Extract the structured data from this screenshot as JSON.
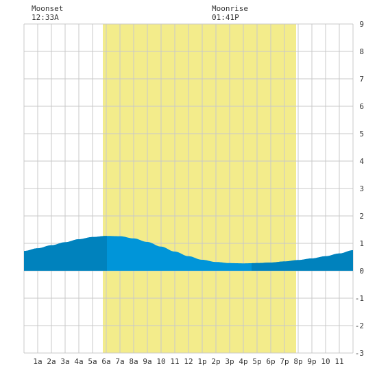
{
  "chart_data": {
    "type": "area",
    "title": "",
    "xlabel": "",
    "ylabel": "",
    "x_range": [
      0,
      24
    ],
    "ylim": [
      -3,
      9
    ],
    "y_ticks": [
      -3,
      -2,
      -1,
      0,
      1,
      2,
      3,
      4,
      5,
      6,
      7,
      8,
      9
    ],
    "x_tick_labels": [
      {
        "x": 1,
        "label": "1a"
      },
      {
        "x": 2,
        "label": "2a"
      },
      {
        "x": 3,
        "label": "3a"
      },
      {
        "x": 4,
        "label": "4a"
      },
      {
        "x": 5,
        "label": "5a"
      },
      {
        "x": 6,
        "label": "6a"
      },
      {
        "x": 7,
        "label": "7a"
      },
      {
        "x": 8,
        "label": "8a"
      },
      {
        "x": 9,
        "label": "9a"
      },
      {
        "x": 10,
        "label": "10"
      },
      {
        "x": 11,
        "label": "11"
      },
      {
        "x": 12,
        "label": "12"
      },
      {
        "x": 13,
        "label": "1p"
      },
      {
        "x": 14,
        "label": "2p"
      },
      {
        "x": 15,
        "label": "3p"
      },
      {
        "x": 16,
        "label": "4p"
      },
      {
        "x": 17,
        "label": "5p"
      },
      {
        "x": 18,
        "label": "6p"
      },
      {
        "x": 19,
        "label": "7p"
      },
      {
        "x": 20,
        "label": "8p"
      },
      {
        "x": 21,
        "label": "9p"
      },
      {
        "x": 22,
        "label": "10"
      },
      {
        "x": 23,
        "label": "11"
      }
    ],
    "grid": true,
    "daylight": {
      "start": 5.75,
      "end": 19.85
    },
    "series": [
      {
        "x": [
          0,
          1,
          2,
          3,
          4,
          5,
          6,
          7,
          8,
          9,
          10,
          11,
          12,
          13,
          14,
          15,
          16,
          17,
          18,
          19,
          20,
          21,
          22,
          23,
          24
        ],
        "values": [
          0.72,
          0.82,
          0.93,
          1.04,
          1.15,
          1.23,
          1.27,
          1.26,
          1.18,
          1.05,
          0.88,
          0.7,
          0.53,
          0.4,
          0.32,
          0.28,
          0.27,
          0.28,
          0.3,
          0.34,
          0.39,
          0.45,
          0.53,
          0.63,
          0.75
        ]
      }
    ],
    "dark_segments": [
      [
        0,
        6.05
      ],
      [
        16.6,
        24
      ]
    ],
    "annotations": [
      {
        "title": "Moonset",
        "time": "12:33A",
        "x": 0.55
      },
      {
        "title": "Moonrise",
        "time": "01:41P",
        "x": 13.7
      }
    ],
    "colors": {
      "daylight": "#f3ec8b",
      "tide_light": "#0095d9",
      "tide_dark": "#0082bd",
      "grid": "#c8c8c8",
      "background": "#ffffff"
    }
  }
}
